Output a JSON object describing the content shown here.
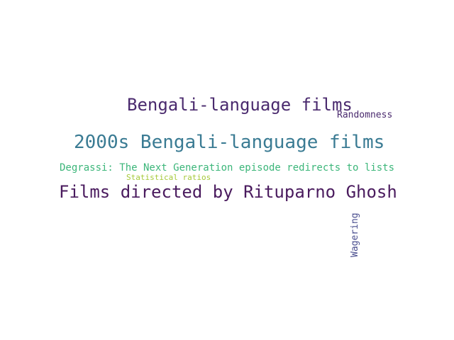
{
  "words": [
    {
      "text": "Bengali-language films",
      "color": "#4a2a6e"
    },
    {
      "text": "Randomness",
      "color": "#4a2a6e"
    },
    {
      "text": "2000s Bengali-language films",
      "color": "#3a7b93"
    },
    {
      "text": "Degrassi: The Next Generation episode redirects to lists",
      "color": "#3cb67a"
    },
    {
      "text": "Statistical ratios",
      "color": "#a6c93a"
    },
    {
      "text": "Films directed by Rituparno Ghosh",
      "color": "#4a1b5e"
    },
    {
      "text": "Wagering",
      "color": "#4a4e8f"
    }
  ]
}
